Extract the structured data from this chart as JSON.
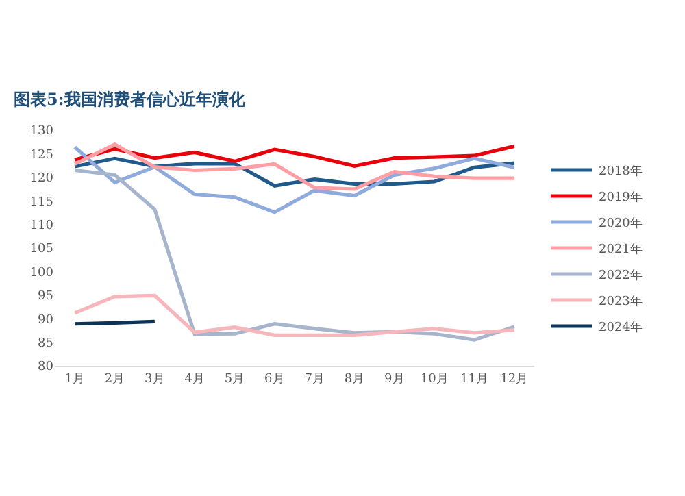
{
  "chart_data": {
    "type": "line",
    "title": "图表5:我国消费者信心近年演化",
    "categories": [
      "1月",
      "2月",
      "3月",
      "4月",
      "5月",
      "6月",
      "7月",
      "8月",
      "9月",
      "10月",
      "11月",
      "12月"
    ],
    "ylim": [
      80,
      130
    ],
    "yticks": [
      80,
      85,
      90,
      95,
      100,
      105,
      110,
      115,
      120,
      125,
      130
    ],
    "grid": false,
    "legend": "right",
    "marker": "none",
    "line_style": "solid",
    "series": [
      {
        "name": "2018年",
        "color": "#1f5a8a",
        "values": [
          122.3,
          124.0,
          122.3,
          122.9,
          122.9,
          118.2,
          119.6,
          118.6,
          118.6,
          119.1,
          122.1,
          123.0
        ]
      },
      {
        "name": "2019年",
        "color": "#e8000b",
        "values": [
          123.7,
          126.0,
          124.1,
          125.3,
          123.4,
          125.9,
          124.4,
          122.4,
          124.1,
          124.3,
          124.6,
          126.6
        ]
      },
      {
        "name": "2020年",
        "color": "#8faadc",
        "values": [
          126.4,
          118.9,
          122.2,
          116.4,
          115.8,
          112.6,
          117.2,
          116.1,
          120.5,
          121.9,
          124.0,
          122.1
        ]
      },
      {
        "name": "2021年",
        "color": "#ff9ea5",
        "values": [
          122.8,
          127.0,
          122.2,
          121.5,
          121.8,
          122.8,
          117.8,
          117.5,
          121.2,
          120.2,
          119.8,
          119.8
        ]
      },
      {
        "name": "2022年",
        "color": "#a6b4cc",
        "values": [
          121.5,
          120.5,
          113.2,
          86.7,
          86.8,
          88.9,
          87.9,
          87.0,
          87.2,
          86.8,
          85.5,
          88.3
        ]
      },
      {
        "name": "2023年",
        "color": "#f7b6bb",
        "values": [
          91.2,
          94.7,
          94.9,
          87.1,
          88.2,
          86.5,
          86.5,
          86.5,
          87.2,
          87.9,
          87.0,
          87.6
        ]
      },
      {
        "name": "2024年",
        "color": "#0d3457",
        "values": [
          88.9,
          89.1,
          89.4,
          null,
          null,
          null,
          null,
          null,
          null,
          null,
          null,
          null
        ]
      }
    ]
  }
}
